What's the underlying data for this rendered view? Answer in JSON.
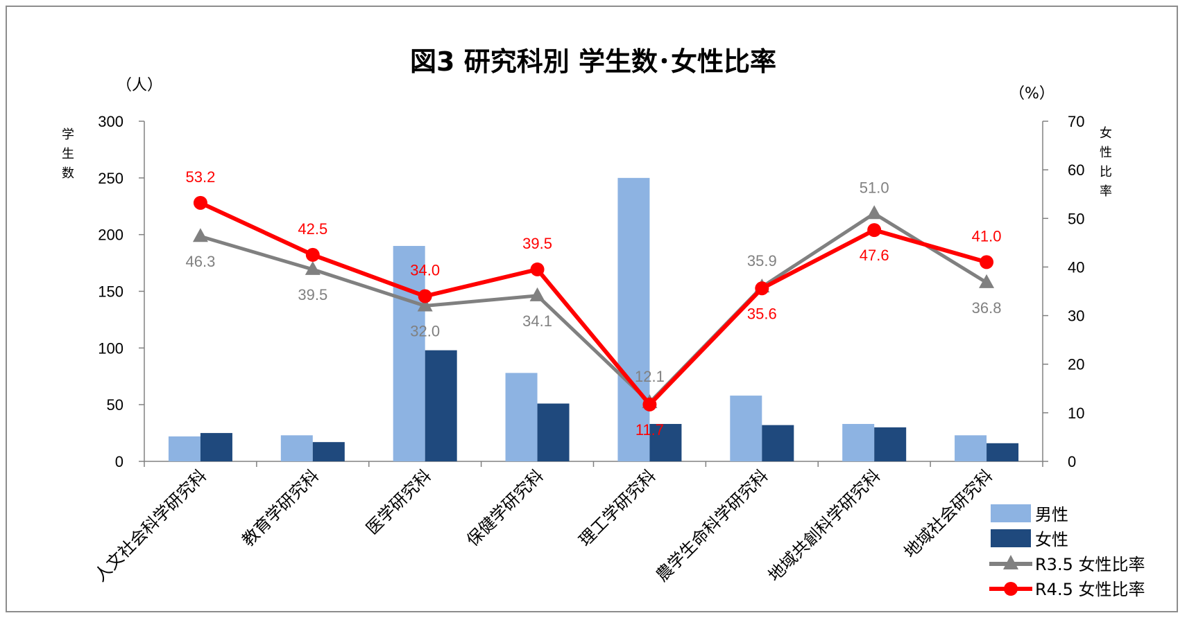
{
  "chart_data": {
    "type": "bar",
    "title": "図3 研究科別 学生数･女性比率",
    "y_unit": "（人）",
    "y_unit_right": "（%）",
    "ylabel": "学生数",
    "ylabel_right": "女性比率",
    "ylim": [
      0,
      300
    ],
    "ylim_right": [
      0,
      70
    ],
    "yticks": [
      0,
      50,
      100,
      150,
      200,
      250,
      300
    ],
    "yticks_right": [
      0,
      10,
      20,
      30,
      40,
      50,
      60,
      70
    ],
    "categories": [
      "人文社会科学研究科",
      "教育学研究科",
      "医学研究科",
      "保健学研究科",
      "理工学研究科",
      "農学生命科学研究科",
      "地域共創科学研究科",
      "地域社会研究科"
    ],
    "series": [
      {
        "name": "男性",
        "type": "bar",
        "axis": "left",
        "color": "#8DB3E2",
        "values": [
          22,
          23,
          190,
          78,
          250,
          58,
          33,
          23
        ]
      },
      {
        "name": "女性",
        "type": "bar",
        "axis": "left",
        "color": "#1F497D",
        "values": [
          25,
          17,
          98,
          51,
          33,
          32,
          30,
          16
        ]
      },
      {
        "name": "R3.5 女性比率",
        "type": "line",
        "axis": "right",
        "color": "#808080",
        "marker": "triangle",
        "values": [
          46.3,
          39.5,
          32.0,
          34.1,
          12.1,
          35.9,
          51.0,
          36.8
        ]
      },
      {
        "name": "R4.5 女性比率",
        "type": "line",
        "axis": "right",
        "color": "#FF0000",
        "marker": "circle",
        "values": [
          53.2,
          42.5,
          34.0,
          39.5,
          11.7,
          35.6,
          47.6,
          41.0
        ]
      }
    ],
    "legend": "bottom-right",
    "grid": false
  }
}
